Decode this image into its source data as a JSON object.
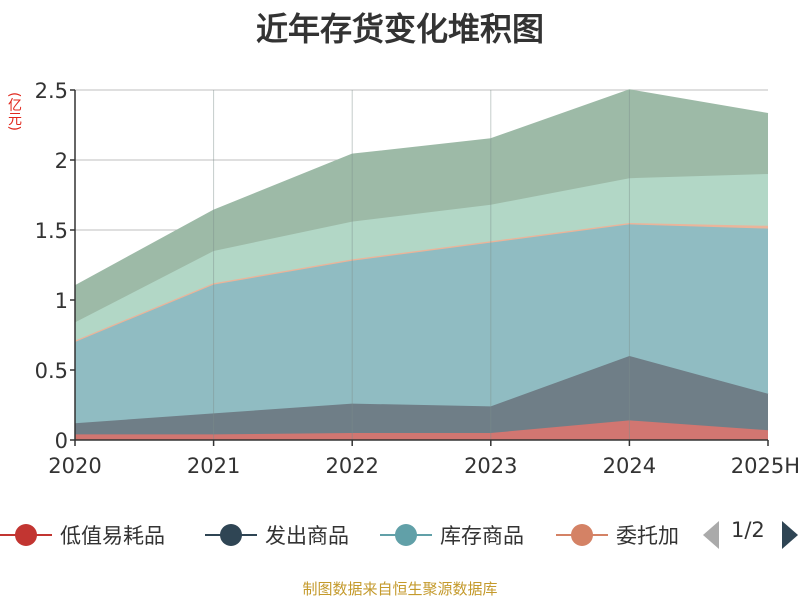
{
  "title": "近年存货变化堆积图",
  "unit_label": "(亿元)",
  "source": "制图数据来自恒生聚源数据库",
  "pager": {
    "text": "1/2"
  },
  "chart_data": {
    "type": "area",
    "stacked": true,
    "title": "近年存货变化堆积图",
    "ylabel": "(亿元)",
    "x": [
      "2020",
      "2021",
      "2022",
      "2023",
      "2024",
      "2025H"
    ],
    "ylim": [
      0,
      2.5
    ],
    "yticks": [
      "0",
      "0.5",
      "1",
      "1.5",
      "2",
      "2.5"
    ],
    "grid": true,
    "legend_position": "bottom",
    "series": [
      {
        "name": "低值易耗品",
        "values": [
          0.04,
          0.04,
          0.05,
          0.05,
          0.14,
          0.07
        ],
        "color": "#d17671"
      },
      {
        "name": "发出商品",
        "values": [
          0.08,
          0.15,
          0.21,
          0.19,
          0.46,
          0.26
        ],
        "color": "#6f7e87"
      },
      {
        "name": "库存商品",
        "values": [
          0.58,
          0.92,
          1.02,
          1.17,
          0.94,
          1.18
        ],
        "color": "#90bcc2"
      },
      {
        "name": "委托加工物资",
        "values": [
          0.01,
          0.01,
          0.01,
          0.01,
          0.01,
          0.02
        ],
        "color": "#eab49a"
      },
      {
        "name": "",
        "values": [
          0.13,
          0.23,
          0.27,
          0.26,
          0.32,
          0.37
        ],
        "color": "#b2d7c6"
      },
      {
        "name": "",
        "values": [
          0.26,
          0.29,
          0.48,
          0.47,
          0.63,
          0.43
        ],
        "color": "#9dbaa7"
      }
    ],
    "legend": [
      {
        "label": "低值易耗品",
        "color": "#c23531"
      },
      {
        "label": "发出商品",
        "color": "#2f4554"
      },
      {
        "label": "库存商品",
        "color": "#61a0a8"
      },
      {
        "label": "委托加",
        "color": "#d48265"
      }
    ]
  }
}
